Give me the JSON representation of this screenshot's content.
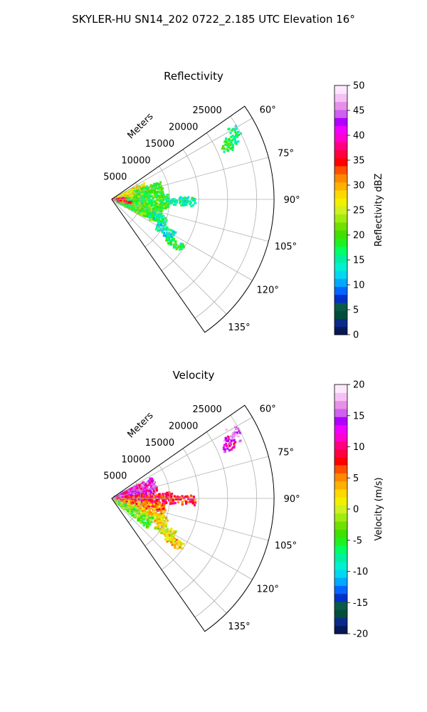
{
  "figure": {
    "title": "SKYLER-HU  SN14_202  0722_2.185 UTC Elevation 16°"
  },
  "chart_data": [
    {
      "type": "heatmap",
      "subtype": "polar-sector",
      "title": "Reflectivity",
      "radial_axis_label": "Meters",
      "radial_ticks": [
        5000,
        10000,
        15000,
        20000,
        25000
      ],
      "radial_tick_labels": [
        "5000",
        "10000",
        "15000",
        "20000",
        "25000"
      ],
      "radial_range": [
        0,
        28000
      ],
      "azimuth_range_deg": [
        55,
        145
      ],
      "azimuth_ticks_deg": [
        60,
        75,
        90,
        105,
        120,
        135
      ],
      "azimuth_tick_labels": [
        "60°",
        "75°",
        "90°",
        "105°",
        "120°",
        "135°"
      ],
      "grid": true,
      "colorbar": {
        "label": "Reflectivity dBZ",
        "range": [
          0,
          50
        ],
        "ticks": [
          0,
          5,
          10,
          15,
          20,
          25,
          30,
          35,
          40,
          45,
          50
        ],
        "tick_labels": [
          "0",
          "5",
          "10",
          "15",
          "20",
          "25",
          "30",
          "35",
          "40",
          "45",
          "50"
        ],
        "colormap": [
          "#061856",
          "#0a2a8a",
          "#004d3a",
          "#0a5a48",
          "#0030c8",
          "#0066ff",
          "#00a8ff",
          "#00d8f0",
          "#00f0d0",
          "#00f0a0",
          "#00ff60",
          "#20f020",
          "#40e000",
          "#70e000",
          "#a0ec10",
          "#d0f020",
          "#f0f000",
          "#ffd800",
          "#ffb000",
          "#ff8800",
          "#ff5000",
          "#ff0000",
          "#ff0040",
          "#ff0080",
          "#ff00d0",
          "#f000ff",
          "#b000ff",
          "#d060f0",
          "#e890e8",
          "#f6c0f6",
          "#fde8fd"
        ]
      },
      "echo_regions": [
        {
          "az": [
            62,
            66
          ],
          "r": [
            21500,
            24500
          ],
          "value": 17
        },
        {
          "az": [
            59,
            64
          ],
          "r": [
            23000,
            25000
          ],
          "value": 16
        },
        {
          "az": [
            64,
            68
          ],
          "r": [
            21000,
            23500
          ],
          "value": 18
        },
        {
          "az": [
            63,
            90
          ],
          "r": [
            500,
            6500
          ],
          "value": 27
        },
        {
          "az": [
            70,
            86
          ],
          "r": [
            4000,
            9000
          ],
          "value": 20
        },
        {
          "az": [
            85,
            100
          ],
          "r": [
            500,
            10000
          ],
          "value": 19
        },
        {
          "az": [
            88,
            95
          ],
          "r": [
            10000,
            14500
          ],
          "value": 15
        },
        {
          "az": [
            98,
            118
          ],
          "r": [
            1000,
            9000
          ],
          "value": 20
        },
        {
          "az": [
            108,
            116
          ],
          "r": [
            7000,
            10500
          ],
          "value": 15
        },
        {
          "az": [
            117,
            125
          ],
          "r": [
            9000,
            12500
          ],
          "value": 14
        },
        {
          "az": [
            122,
            128
          ],
          "r": [
            11500,
            15000
          ],
          "value": 18
        },
        {
          "az": [
            84,
            92
          ],
          "r": [
            200,
            2500
          ],
          "value": 36
        },
        {
          "az": [
            98,
            104
          ],
          "r": [
            1000,
            3500
          ],
          "value": 34
        }
      ]
    },
    {
      "type": "heatmap",
      "subtype": "polar-sector",
      "title": "Velocity",
      "radial_axis_label": "Meters",
      "radial_ticks": [
        5000,
        10000,
        15000,
        20000,
        25000
      ],
      "radial_tick_labels": [
        "5000",
        "10000",
        "15000",
        "20000",
        "25000"
      ],
      "radial_range": [
        0,
        28000
      ],
      "azimuth_range_deg": [
        55,
        145
      ],
      "azimuth_ticks_deg": [
        60,
        75,
        90,
        105,
        120,
        135
      ],
      "azimuth_tick_labels": [
        "60°",
        "75°",
        "90°",
        "105°",
        "120°",
        "135°"
      ],
      "grid": true,
      "colorbar": {
        "label": "Velocity (m/s)",
        "range": [
          -20,
          20
        ],
        "ticks": [
          -20,
          -15,
          -10,
          -5,
          0,
          5,
          10,
          15,
          20
        ],
        "tick_labels": [
          "-20",
          "-15",
          "-10",
          "-5",
          "0",
          "5",
          "10",
          "15",
          "20"
        ],
        "colormap": [
          "#061856",
          "#0a2a8a",
          "#004d3a",
          "#0a5a48",
          "#0030c8",
          "#0066ff",
          "#00a8ff",
          "#00d8f0",
          "#00f0d0",
          "#00f0a0",
          "#00ff60",
          "#20f020",
          "#40e000",
          "#70e000",
          "#a0ec10",
          "#d0f020",
          "#f0f000",
          "#ffd800",
          "#ffb000",
          "#ff8800",
          "#ff5000",
          "#ff0000",
          "#ff0040",
          "#ff0080",
          "#ff00d0",
          "#f000ff",
          "#b000ff",
          "#d060f0",
          "#e890e8",
          "#f6c0f6",
          "#fde8fd"
        ]
      },
      "echo_regions": [
        {
          "az": [
            62,
            66
          ],
          "r": [
            21500,
            24500
          ],
          "value": 14
        },
        {
          "az": [
            59,
            64
          ],
          "r": [
            23000,
            25000
          ],
          "value": 16
        },
        {
          "az": [
            64,
            68
          ],
          "r": [
            21000,
            23500
          ],
          "value": 12
        },
        {
          "az": [
            63,
            84
          ],
          "r": [
            500,
            8000
          ],
          "value": 13
        },
        {
          "az": [
            84,
            96
          ],
          "r": [
            2000,
            10500
          ],
          "value": 9
        },
        {
          "az": [
            88,
            95
          ],
          "r": [
            10000,
            14500
          ],
          "value": 8
        },
        {
          "az": [
            96,
            108
          ],
          "r": [
            1000,
            9500
          ],
          "value": 5
        },
        {
          "az": [
            108,
            118
          ],
          "r": [
            3000,
            10500
          ],
          "value": 2
        },
        {
          "az": [
            117,
            125
          ],
          "r": [
            9000,
            12500
          ],
          "value": 1
        },
        {
          "az": [
            115,
            130
          ],
          "r": [
            500,
            8000
          ],
          "value": -3
        },
        {
          "az": [
            122,
            128
          ],
          "r": [
            11500,
            15000
          ],
          "value": 2
        }
      ]
    }
  ]
}
